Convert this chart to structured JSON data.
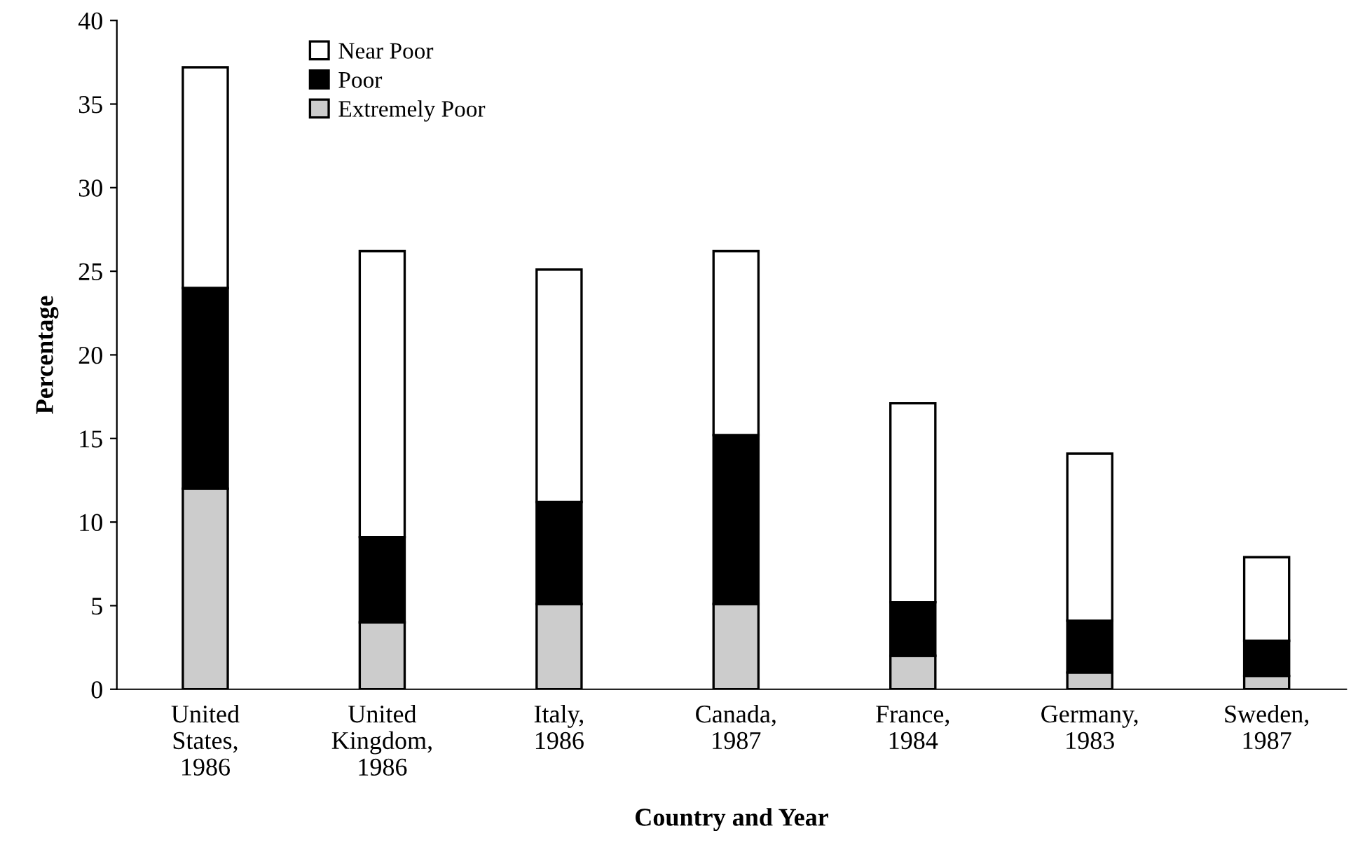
{
  "chart_data": {
    "type": "bar",
    "stacked": true,
    "xlabel": "Country and Year",
    "ylabel": "Percentage",
    "categories": [
      "United\nStates,\n1986",
      "United\nKingdom,\n1986",
      "Italy,\n1986",
      "Canada,\n1987",
      "France,\n1984",
      "Germany,\n1983",
      "Sweden,\n1987"
    ],
    "series": [
      {
        "name": "Extremely Poor",
        "color": "#cccccc",
        "values": [
          12,
          4,
          5.1,
          5.1,
          2,
          1,
          0.8
        ]
      },
      {
        "name": "Poor",
        "color": "#000000",
        "values": [
          12,
          5.1,
          6.1,
          10.1,
          3.2,
          3.1,
          2.1
        ]
      },
      {
        "name": "Near Poor",
        "color": "#ffffff",
        "values": [
          13.2,
          17.1,
          13.9,
          11.0,
          11.9,
          10.0,
          5.0
        ]
      }
    ],
    "ylim": [
      0,
      40
    ],
    "yticks": [
      0,
      5,
      10,
      15,
      20,
      25,
      30,
      35,
      40
    ],
    "grid": false,
    "legend": "top left"
  }
}
